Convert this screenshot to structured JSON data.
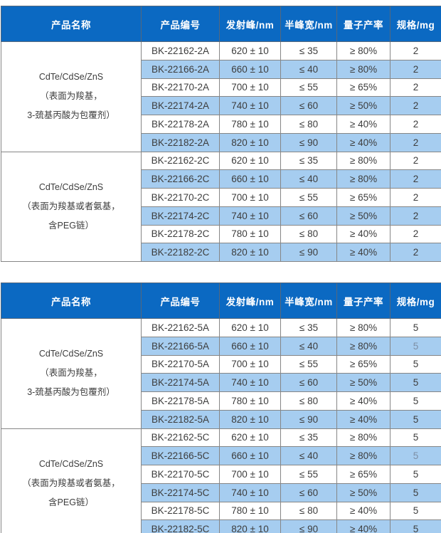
{
  "colors": {
    "header_bg": "#0b69c2",
    "header_text": "#ffffff",
    "row_alt_bg": "#a6cdf0",
    "row_bg": "#ffffff",
    "body_border": "#868686",
    "header_border": "#55687d",
    "text": "#3d3d3d",
    "muted_text": "#7d8fa5"
  },
  "columns": [
    "产品名称",
    "产品编号",
    "发射峰/nm",
    "半峰宽/nm",
    "量子产率",
    "规格/mg"
  ],
  "tables": [
    {
      "id": "spec-table-2mg",
      "groups": [
        {
          "name_lines": [
            "CdTe/CdSe/ZnS",
            "（表面为羧基，",
            "3-巯基丙酸为包覆剂）"
          ],
          "rows": [
            {
              "code": "BK-22162-2A",
              "emission": "620 ± 10",
              "fwhm": "≤ 35",
              "qy": "≥ 80%",
              "spec": "2"
            },
            {
              "code": "BK-22166-2A",
              "emission": "660 ± 10",
              "fwhm": "≤ 40",
              "qy": "≥ 80%",
              "spec": "2"
            },
            {
              "code": "BK-22170-2A",
              "emission": "700 ± 10",
              "fwhm": "≤ 55",
              "qy": "≥ 65%",
              "spec": "2"
            },
            {
              "code": "BK-22174-2A",
              "emission": "740 ± 10",
              "fwhm": "≤ 60",
              "qy": "≥ 50%",
              "spec": "2"
            },
            {
              "code": "BK-22178-2A",
              "emission": "780 ± 10",
              "fwhm": "≤ 80",
              "qy": "≥ 40%",
              "spec": "2"
            },
            {
              "code": "BK-22182-2A",
              "emission": "820 ± 10",
              "fwhm": "≤ 90",
              "qy": "≥ 40%",
              "spec": "2"
            }
          ]
        },
        {
          "name_lines": [
            "CdTe/CdSe/ZnS",
            "（表面为羧基或者氨基，",
            "含PEG链）"
          ],
          "rows": [
            {
              "code": "BK-22162-2C",
              "emission": "620 ± 10",
              "fwhm": "≤ 35",
              "qy": "≥ 80%",
              "spec": "2"
            },
            {
              "code": "BK-22166-2C",
              "emission": "660 ± 10",
              "fwhm": "≤ 40",
              "qy": "≥ 80%",
              "spec": "2"
            },
            {
              "code": "BK-22170-2C",
              "emission": "700 ± 10",
              "fwhm": "≤ 55",
              "qy": "≥ 65%",
              "spec": "2"
            },
            {
              "code": "BK-22174-2C",
              "emission": "740 ± 10",
              "fwhm": "≤ 60",
              "qy": "≥ 50%",
              "spec": "2"
            },
            {
              "code": "BK-22178-2C",
              "emission": "780 ± 10",
              "fwhm": "≤ 80",
              "qy": "≥ 40%",
              "spec": "2"
            },
            {
              "code": "BK-22182-2C",
              "emission": "820 ± 10",
              "fwhm": "≤ 90",
              "qy": "≥ 40%",
              "spec": "2"
            }
          ]
        }
      ]
    },
    {
      "id": "spec-table-5mg",
      "groups": [
        {
          "name_lines": [
            "CdTe/CdSe/ZnS",
            "（表面为羧基，",
            "3-巯基丙酸为包覆剂）"
          ],
          "rows": [
            {
              "code": "BK-22162-5A",
              "emission": "620 ± 10",
              "fwhm": "≤ 35",
              "qy": "≥ 80%",
              "spec": "5"
            },
            {
              "code": "BK-22166-5A",
              "emission": "660 ± 10",
              "fwhm": "≤ 40",
              "qy": "≥ 80%",
              "spec": "5",
              "spec_muted": true
            },
            {
              "code": "BK-22170-5A",
              "emission": "700 ± 10",
              "fwhm": "≤ 55",
              "qy": "≥ 65%",
              "spec": "5"
            },
            {
              "code": "BK-22174-5A",
              "emission": "740 ± 10",
              "fwhm": "≤ 60",
              "qy": "≥ 50%",
              "spec": "5"
            },
            {
              "code": "BK-22178-5A",
              "emission": "780 ± 10",
              "fwhm": "≤ 80",
              "qy": "≥ 40%",
              "spec": "5"
            },
            {
              "code": "BK-22182-5A",
              "emission": "820 ± 10",
              "fwhm": "≤ 90",
              "qy": "≥ 40%",
              "spec": "5"
            }
          ]
        },
        {
          "name_lines": [
            "CdTe/CdSe/ZnS",
            "（表面为羧基或者氨基，",
            "含PEG链）"
          ],
          "rows": [
            {
              "code": "BK-22162-5C",
              "emission": "620 ± 10",
              "fwhm": "≤ 35",
              "qy": "≥ 80%",
              "spec": "5"
            },
            {
              "code": "BK-22166-5C",
              "emission": "660 ± 10",
              "fwhm": "≤ 40",
              "qy": "≥ 80%",
              "spec": "5",
              "spec_muted": true
            },
            {
              "code": "BK-22170-5C",
              "emission": "700 ± 10",
              "fwhm": "≤ 55",
              "qy": "≥ 65%",
              "spec": "5"
            },
            {
              "code": "BK-22174-5C",
              "emission": "740 ± 10",
              "fwhm": "≤ 60",
              "qy": "≥ 50%",
              "spec": "5"
            },
            {
              "code": "BK-22178-5C",
              "emission": "780 ± 10",
              "fwhm": "≤ 80",
              "qy": "≥ 40%",
              "spec": "5"
            },
            {
              "code": "BK-22182-5C",
              "emission": "820 ± 10",
              "fwhm": "≤ 90",
              "qy": "≥ 40%",
              "spec": "5"
            }
          ]
        }
      ]
    }
  ]
}
